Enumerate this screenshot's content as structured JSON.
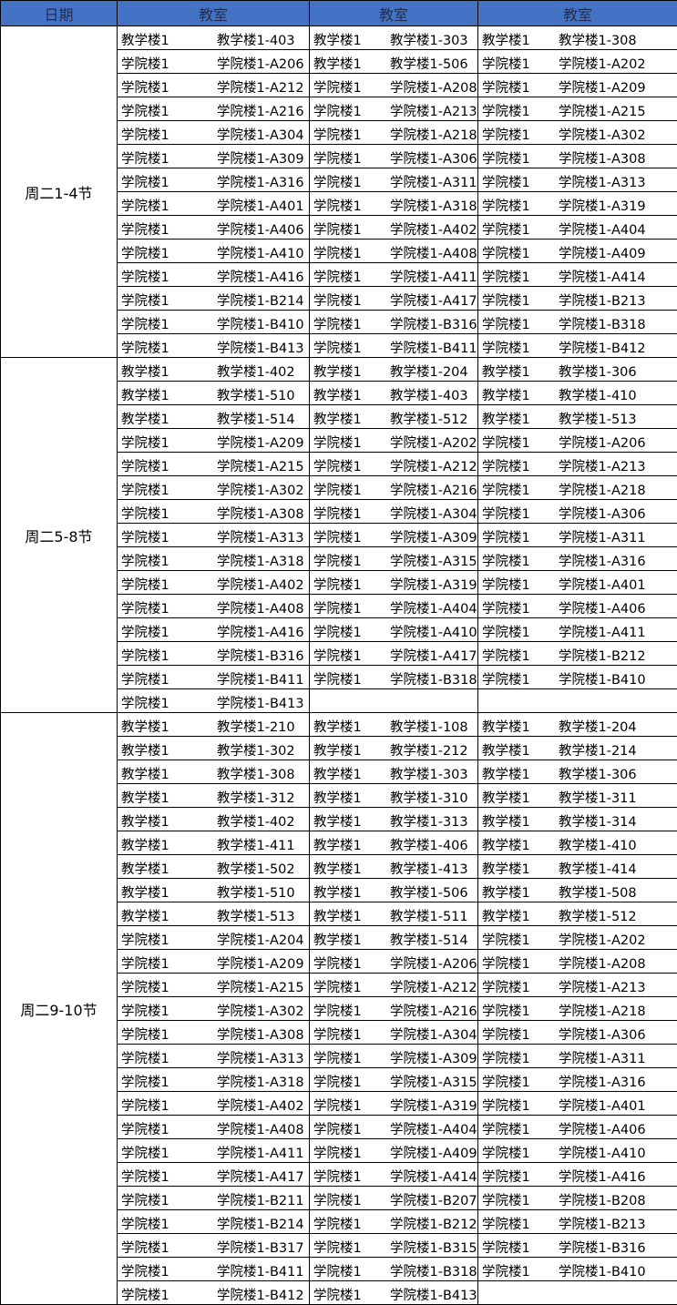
{
  "header": {
    "date": "日期",
    "rooms": [
      "教室",
      "教室",
      "教室"
    ]
  },
  "colors": {
    "header_bg": "#4472C4"
  },
  "sections": [
    {
      "date": "周二1-4节",
      "rows": [
        [
          [
            "教学楼1",
            "教学楼1-403"
          ],
          [
            "教学楼1",
            "教学楼1-303"
          ],
          [
            "教学楼1",
            "教学楼1-308"
          ]
        ],
        [
          [
            "学院楼1",
            "学院楼1-A206"
          ],
          [
            "教学楼1",
            "教学楼1-506"
          ],
          [
            "学院楼1",
            "学院楼1-A202"
          ]
        ],
        [
          [
            "学院楼1",
            "学院楼1-A212"
          ],
          [
            "学院楼1",
            "学院楼1-A208"
          ],
          [
            "学院楼1",
            "学院楼1-A209"
          ]
        ],
        [
          [
            "学院楼1",
            "学院楼1-A216"
          ],
          [
            "学院楼1",
            "学院楼1-A213"
          ],
          [
            "学院楼1",
            "学院楼1-A215"
          ]
        ],
        [
          [
            "学院楼1",
            "学院楼1-A304"
          ],
          [
            "学院楼1",
            "学院楼1-A218"
          ],
          [
            "学院楼1",
            "学院楼1-A302"
          ]
        ],
        [
          [
            "学院楼1",
            "学院楼1-A309"
          ],
          [
            "学院楼1",
            "学院楼1-A306"
          ],
          [
            "学院楼1",
            "学院楼1-A308"
          ]
        ],
        [
          [
            "学院楼1",
            "学院楼1-A316"
          ],
          [
            "学院楼1",
            "学院楼1-A311"
          ],
          [
            "学院楼1",
            "学院楼1-A313"
          ]
        ],
        [
          [
            "学院楼1",
            "学院楼1-A401"
          ],
          [
            "学院楼1",
            "学院楼1-A318"
          ],
          [
            "学院楼1",
            "学院楼1-A319"
          ]
        ],
        [
          [
            "学院楼1",
            "学院楼1-A406"
          ],
          [
            "学院楼1",
            "学院楼1-A402"
          ],
          [
            "学院楼1",
            "学院楼1-A404"
          ]
        ],
        [
          [
            "学院楼1",
            "学院楼1-A410"
          ],
          [
            "学院楼1",
            "学院楼1-A408"
          ],
          [
            "学院楼1",
            "学院楼1-A409"
          ]
        ],
        [
          [
            "学院楼1",
            "学院楼1-A416"
          ],
          [
            "学院楼1",
            "学院楼1-A411"
          ],
          [
            "学院楼1",
            "学院楼1-A414"
          ]
        ],
        [
          [
            "学院楼1",
            "学院楼1-B214"
          ],
          [
            "学院楼1",
            "学院楼1-A417"
          ],
          [
            "学院楼1",
            "学院楼1-B213"
          ]
        ],
        [
          [
            "学院楼1",
            "学院楼1-B410"
          ],
          [
            "学院楼1",
            "学院楼1-B316"
          ],
          [
            "学院楼1",
            "学院楼1-B318"
          ]
        ],
        [
          [
            "学院楼1",
            "学院楼1-B413"
          ],
          [
            "学院楼1",
            "学院楼1-B411"
          ],
          [
            "学院楼1",
            "学院楼1-B412"
          ]
        ]
      ]
    },
    {
      "date": "周二5-8节",
      "rows": [
        [
          [
            "教学楼1",
            "教学楼1-402"
          ],
          [
            "教学楼1",
            "教学楼1-204"
          ],
          [
            "教学楼1",
            "教学楼1-306"
          ]
        ],
        [
          [
            "教学楼1",
            "教学楼1-510"
          ],
          [
            "教学楼1",
            "教学楼1-403"
          ],
          [
            "教学楼1",
            "教学楼1-410"
          ]
        ],
        [
          [
            "教学楼1",
            "教学楼1-514"
          ],
          [
            "教学楼1",
            "教学楼1-512"
          ],
          [
            "教学楼1",
            "教学楼1-513"
          ]
        ],
        [
          [
            "学院楼1",
            "学院楼1-A209"
          ],
          [
            "学院楼1",
            "学院楼1-A202"
          ],
          [
            "学院楼1",
            "学院楼1-A206"
          ]
        ],
        [
          [
            "学院楼1",
            "学院楼1-A215"
          ],
          [
            "学院楼1",
            "学院楼1-A212"
          ],
          [
            "学院楼1",
            "学院楼1-A213"
          ]
        ],
        [
          [
            "学院楼1",
            "学院楼1-A302"
          ],
          [
            "学院楼1",
            "学院楼1-A216"
          ],
          [
            "学院楼1",
            "学院楼1-A218"
          ]
        ],
        [
          [
            "学院楼1",
            "学院楼1-A308"
          ],
          [
            "学院楼1",
            "学院楼1-A304"
          ],
          [
            "学院楼1",
            "学院楼1-A306"
          ]
        ],
        [
          [
            "学院楼1",
            "学院楼1-A313"
          ],
          [
            "学院楼1",
            "学院楼1-A309"
          ],
          [
            "学院楼1",
            "学院楼1-A311"
          ]
        ],
        [
          [
            "学院楼1",
            "学院楼1-A318"
          ],
          [
            "学院楼1",
            "学院楼1-A315"
          ],
          [
            "学院楼1",
            "学院楼1-A316"
          ]
        ],
        [
          [
            "学院楼1",
            "学院楼1-A402"
          ],
          [
            "学院楼1",
            "学院楼1-A319"
          ],
          [
            "学院楼1",
            "学院楼1-A401"
          ]
        ],
        [
          [
            "学院楼1",
            "学院楼1-A408"
          ],
          [
            "学院楼1",
            "学院楼1-A404"
          ],
          [
            "学院楼1",
            "学院楼1-A406"
          ]
        ],
        [
          [
            "学院楼1",
            "学院楼1-A416"
          ],
          [
            "学院楼1",
            "学院楼1-A410"
          ],
          [
            "学院楼1",
            "学院楼1-A411"
          ]
        ],
        [
          [
            "学院楼1",
            "学院楼1-B316"
          ],
          [
            "学院楼1",
            "学院楼1-A417"
          ],
          [
            "学院楼1",
            "学院楼1-B212"
          ]
        ],
        [
          [
            "学院楼1",
            "学院楼1-B411"
          ],
          [
            "学院楼1",
            "学院楼1-B318"
          ],
          [
            "学院楼1",
            "学院楼1-B410"
          ]
        ],
        [
          [
            "学院楼1",
            "学院楼1-B413"
          ],
          null,
          null
        ]
      ]
    },
    {
      "date": "周二9-10节",
      "rows": [
        [
          [
            "教学楼1",
            "教学楼1-210"
          ],
          [
            "教学楼1",
            "教学楼1-108"
          ],
          [
            "教学楼1",
            "教学楼1-204"
          ]
        ],
        [
          [
            "教学楼1",
            "教学楼1-302"
          ],
          [
            "教学楼1",
            "教学楼1-212"
          ],
          [
            "教学楼1",
            "教学楼1-214"
          ]
        ],
        [
          [
            "教学楼1",
            "教学楼1-308"
          ],
          [
            "教学楼1",
            "教学楼1-303"
          ],
          [
            "教学楼1",
            "教学楼1-306"
          ]
        ],
        [
          [
            "教学楼1",
            "教学楼1-312"
          ],
          [
            "教学楼1",
            "教学楼1-310"
          ],
          [
            "教学楼1",
            "教学楼1-311"
          ]
        ],
        [
          [
            "教学楼1",
            "教学楼1-402"
          ],
          [
            "教学楼1",
            "教学楼1-313"
          ],
          [
            "教学楼1",
            "教学楼1-314"
          ]
        ],
        [
          [
            "教学楼1",
            "教学楼1-411"
          ],
          [
            "教学楼1",
            "教学楼1-406"
          ],
          [
            "教学楼1",
            "教学楼1-410"
          ]
        ],
        [
          [
            "教学楼1",
            "教学楼1-502"
          ],
          [
            "教学楼1",
            "教学楼1-413"
          ],
          [
            "教学楼1",
            "教学楼1-414"
          ]
        ],
        [
          [
            "教学楼1",
            "教学楼1-510"
          ],
          [
            "教学楼1",
            "教学楼1-506"
          ],
          [
            "教学楼1",
            "教学楼1-508"
          ]
        ],
        [
          [
            "教学楼1",
            "教学楼1-513"
          ],
          [
            "教学楼1",
            "教学楼1-511"
          ],
          [
            "教学楼1",
            "教学楼1-512"
          ]
        ],
        [
          [
            "学院楼1",
            "学院楼1-A204"
          ],
          [
            "教学楼1",
            "教学楼1-514"
          ],
          [
            "学院楼1",
            "学院楼1-A202"
          ]
        ],
        [
          [
            "学院楼1",
            "学院楼1-A209"
          ],
          [
            "学院楼1",
            "学院楼1-A206"
          ],
          [
            "学院楼1",
            "学院楼1-A208"
          ]
        ],
        [
          [
            "学院楼1",
            "学院楼1-A215"
          ],
          [
            "学院楼1",
            "学院楼1-A212"
          ],
          [
            "学院楼1",
            "学院楼1-A213"
          ]
        ],
        [
          [
            "学院楼1",
            "学院楼1-A302"
          ],
          [
            "学院楼1",
            "学院楼1-A216"
          ],
          [
            "学院楼1",
            "学院楼1-A218"
          ]
        ],
        [
          [
            "学院楼1",
            "学院楼1-A308"
          ],
          [
            "学院楼1",
            "学院楼1-A304"
          ],
          [
            "学院楼1",
            "学院楼1-A306"
          ]
        ],
        [
          [
            "学院楼1",
            "学院楼1-A313"
          ],
          [
            "学院楼1",
            "学院楼1-A309"
          ],
          [
            "学院楼1",
            "学院楼1-A311"
          ]
        ],
        [
          [
            "学院楼1",
            "学院楼1-A318"
          ],
          [
            "学院楼1",
            "学院楼1-A315"
          ],
          [
            "学院楼1",
            "学院楼1-A316"
          ]
        ],
        [
          [
            "学院楼1",
            "学院楼1-A402"
          ],
          [
            "学院楼1",
            "学院楼1-A319"
          ],
          [
            "学院楼1",
            "学院楼1-A401"
          ]
        ],
        [
          [
            "学院楼1",
            "学院楼1-A408"
          ],
          [
            "学院楼1",
            "学院楼1-A404"
          ],
          [
            "学院楼1",
            "学院楼1-A406"
          ]
        ],
        [
          [
            "学院楼1",
            "学院楼1-A411"
          ],
          [
            "学院楼1",
            "学院楼1-A409"
          ],
          [
            "学院楼1",
            "学院楼1-A410"
          ]
        ],
        [
          [
            "学院楼1",
            "学院楼1-A417"
          ],
          [
            "学院楼1",
            "学院楼1-A414"
          ],
          [
            "学院楼1",
            "学院楼1-A416"
          ]
        ],
        [
          [
            "学院楼1",
            "学院楼1-B211"
          ],
          [
            "学院楼1",
            "学院楼1-B207"
          ],
          [
            "学院楼1",
            "学院楼1-B208"
          ]
        ],
        [
          [
            "学院楼1",
            "学院楼1-B214"
          ],
          [
            "学院楼1",
            "学院楼1-B212"
          ],
          [
            "学院楼1",
            "学院楼1-B213"
          ]
        ],
        [
          [
            "学院楼1",
            "学院楼1-B317"
          ],
          [
            "学院楼1",
            "学院楼1-B315"
          ],
          [
            "学院楼1",
            "学院楼1-B316"
          ]
        ],
        [
          [
            "学院楼1",
            "学院楼1-B411"
          ],
          [
            "学院楼1",
            "学院楼1-B318"
          ],
          [
            "学院楼1",
            "学院楼1-B410"
          ]
        ],
        [
          [
            "学院楼1",
            "学院楼1-B412"
          ],
          [
            "学院楼1",
            "学院楼1-B413"
          ],
          null
        ]
      ]
    }
  ]
}
